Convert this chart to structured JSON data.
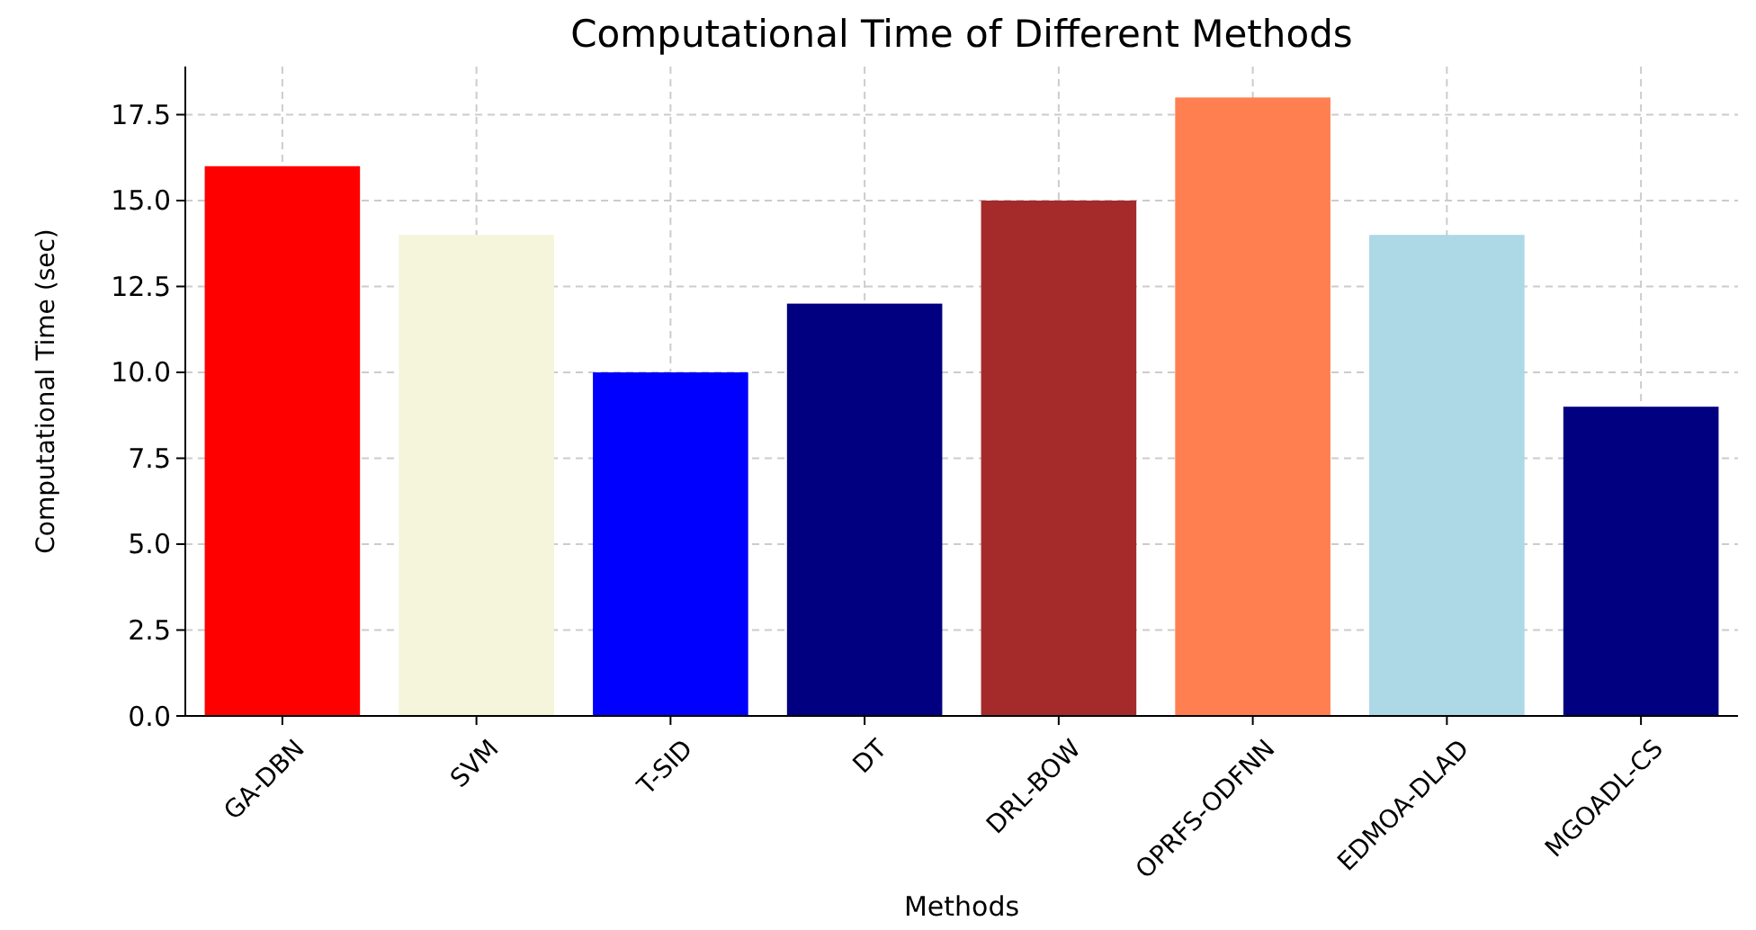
{
  "chart_data": {
    "type": "bar",
    "title": "Computational Time of Different Methods",
    "xlabel": "Methods",
    "ylabel": "Computational Time (sec)",
    "categories": [
      "GA-DBN",
      "SVM",
      "T-SID",
      "DT",
      "DRL-BOW",
      "OPRFS-ODFNN",
      "EDMOA-DLAD",
      "MGOADL-CS"
    ],
    "values": [
      16,
      14,
      10,
      12,
      15,
      18,
      14,
      9
    ],
    "colors": [
      "#ff0000",
      "#f5f5dc",
      "#0000ff",
      "#000080",
      "#a52a2a",
      "#ff7f50",
      "#add8e6",
      "#000080"
    ],
    "ylim": [
      0,
      18.9
    ],
    "yticks": [
      {
        "value": 0,
        "label": "0.0"
      },
      {
        "value": 2.5,
        "label": "2.5"
      },
      {
        "value": 5,
        "label": "5.0"
      },
      {
        "value": 7.5,
        "label": "7.5"
      },
      {
        "value": 10,
        "label": "10.0"
      },
      {
        "value": 12.5,
        "label": "12.5"
      },
      {
        "value": 15,
        "label": "15.0"
      },
      {
        "value": 17.5,
        "label": "17.5"
      }
    ],
    "grid": true
  }
}
